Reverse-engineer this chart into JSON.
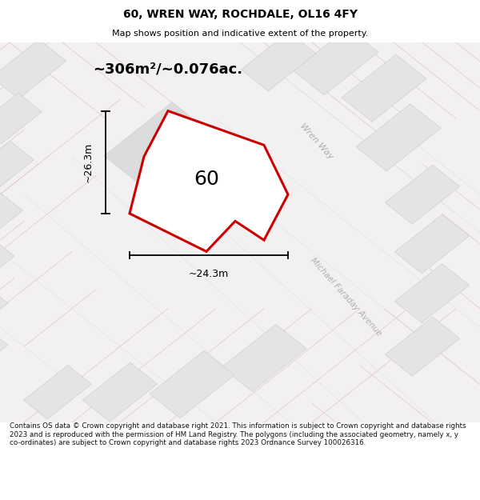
{
  "title": "60, WREN WAY, ROCHDALE, OL16 4FY",
  "subtitle": "Map shows position and indicative extent of the property.",
  "area_label": "~306m²/~0.076ac.",
  "property_number": "60",
  "dim_width": "~24.3m",
  "dim_height": "~26.3m",
  "footer": "Contains OS data © Crown copyright and database right 2021. This information is subject to Crown copyright and database rights 2023 and is reproduced with the permission of HM Land Registry. The polygons (including the associated geometry, namely x, y co-ordinates) are subject to Crown copyright and database rights 2023 Ordnance Survey 100026316.",
  "map_bg": "#f2f0f0",
  "plot_color": "#cc0000",
  "road_label_color": "#b0b0b0",
  "road_line_pink": "#e8c8c8",
  "road_line_blue": "#c8d4e0",
  "building_fill": "#e4e4e4",
  "building_edge": "#d0d0d0"
}
